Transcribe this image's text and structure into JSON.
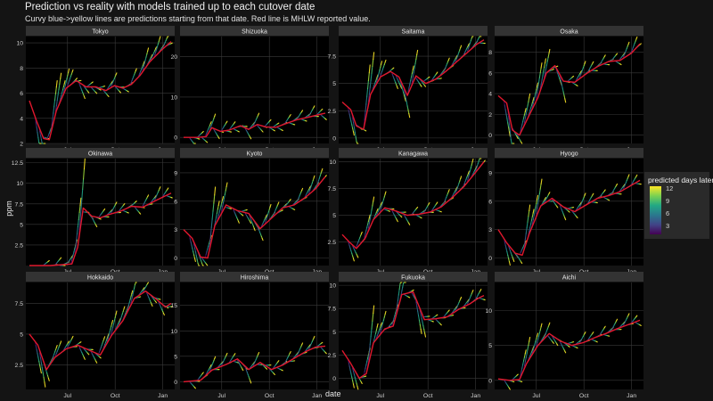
{
  "title": "Prediction vs reality with models trained up to each cutover date",
  "subtitle": "Curvy blue->yellow lines are predictions starting from that date. Red line is MHLW reported value.",
  "chart_data": {
    "type": "line",
    "xlabel": "date",
    "ylabel": "ppm",
    "x_tick_labels": [
      "Jul",
      "Oct",
      "Jan"
    ],
    "grid": true,
    "legend": {
      "title": "predicted days later",
      "placement": "right",
      "colormap": "viridis",
      "ticks": [
        12,
        9,
        6,
        3
      ],
      "range": [
        1,
        12
      ]
    },
    "series_colors": {
      "reported": "#e0182d"
    },
    "panels": [
      {
        "name": "Tokyo",
        "yticks": [
          2,
          4,
          6,
          8,
          10
        ],
        "ylim": [
          2,
          10.5
        ],
        "reported": [
          [
            0,
            5.4
          ],
          [
            0.05,
            3.8
          ],
          [
            0.1,
            2.4
          ],
          [
            0.14,
            2.3
          ],
          [
            0.19,
            4.6
          ],
          [
            0.26,
            6.4
          ],
          [
            0.33,
            7.0
          ],
          [
            0.4,
            6.5
          ],
          [
            0.47,
            6.5
          ],
          [
            0.54,
            6.2
          ],
          [
            0.6,
            6.6
          ],
          [
            0.66,
            6.4
          ],
          [
            0.72,
            6.7
          ],
          [
            0.78,
            7.4
          ],
          [
            0.85,
            8.5
          ],
          [
            0.93,
            9.4
          ],
          [
            1,
            10.1
          ]
        ]
      },
      {
        "name": "Shizuoka",
        "yticks": [
          0,
          10,
          20
        ],
        "ylim": [
          -1.5,
          25
        ],
        "reported": [
          [
            0,
            0
          ],
          [
            0.1,
            0
          ],
          [
            0.16,
            0.2
          ],
          [
            0.2,
            2.4
          ],
          [
            0.26,
            1.5
          ],
          [
            0.32,
            1.8
          ],
          [
            0.4,
            2.9
          ],
          [
            0.46,
            2.0
          ],
          [
            0.52,
            3.2
          ],
          [
            0.58,
            2.6
          ],
          [
            0.65,
            2.5
          ],
          [
            0.72,
            3.4
          ],
          [
            0.8,
            4.4
          ],
          [
            0.88,
            5.0
          ],
          [
            0.95,
            5.6
          ],
          [
            1,
            6.0
          ]
        ]
      },
      {
        "name": "Saitama",
        "yticks": [
          0.0,
          2.5,
          5.0,
          7.5
        ],
        "ylim": [
          -0.5,
          9.3
        ],
        "reported": [
          [
            0,
            3.3
          ],
          [
            0.06,
            2.6
          ],
          [
            0.1,
            1.1
          ],
          [
            0.15,
            0.8
          ],
          [
            0.2,
            4.0
          ],
          [
            0.27,
            5.6
          ],
          [
            0.34,
            6.1
          ],
          [
            0.4,
            5.6
          ],
          [
            0.46,
            3.9
          ],
          [
            0.52,
            5.7
          ],
          [
            0.59,
            5.0
          ],
          [
            0.66,
            5.4
          ],
          [
            0.73,
            6.1
          ],
          [
            0.8,
            6.9
          ],
          [
            0.88,
            7.8
          ],
          [
            0.95,
            8.6
          ],
          [
            1,
            9.0
          ]
        ]
      },
      {
        "name": "Osaka",
        "yticks": [
          0,
          2,
          4,
          6,
          8
        ],
        "ylim": [
          -0.8,
          9.5
        ],
        "reported": [
          [
            0,
            3.8
          ],
          [
            0.06,
            3.1
          ],
          [
            0.1,
            0.5
          ],
          [
            0.15,
            0.0
          ],
          [
            0.2,
            1.4
          ],
          [
            0.28,
            3.6
          ],
          [
            0.34,
            6.0
          ],
          [
            0.4,
            6.7
          ],
          [
            0.46,
            5.2
          ],
          [
            0.54,
            5.1
          ],
          [
            0.62,
            5.9
          ],
          [
            0.7,
            6.6
          ],
          [
            0.78,
            7.1
          ],
          [
            0.86,
            7.2
          ],
          [
            0.94,
            7.9
          ],
          [
            1,
            8.8
          ]
        ]
      },
      {
        "name": "Okinawa",
        "yticks": [
          2.5,
          5.0,
          7.5,
          10.0,
          12.5
        ],
        "ylim": [
          0,
          13
        ],
        "reported": [
          [
            0,
            0
          ],
          [
            0.15,
            0
          ],
          [
            0.3,
            0.2
          ],
          [
            0.34,
            2.2
          ],
          [
            0.38,
            7.0
          ],
          [
            0.44,
            6.0
          ],
          [
            0.5,
            5.8
          ],
          [
            0.56,
            6.2
          ],
          [
            0.64,
            6.6
          ],
          [
            0.72,
            7.2
          ],
          [
            0.8,
            7.1
          ],
          [
            0.88,
            7.8
          ],
          [
            0.95,
            8.4
          ],
          [
            1,
            8.8
          ]
        ]
      },
      {
        "name": "Kyoto",
        "yticks": [
          0,
          3,
          6,
          9
        ],
        "ylim": [
          -0.8,
          10.5
        ],
        "reported": [
          [
            0,
            3.0
          ],
          [
            0.06,
            2.1
          ],
          [
            0.12,
            0.1
          ],
          [
            0.17,
            0.0
          ],
          [
            0.22,
            3.4
          ],
          [
            0.3,
            5.6
          ],
          [
            0.38,
            5.0
          ],
          [
            0.46,
            4.7
          ],
          [
            0.54,
            3.1
          ],
          [
            0.62,
            4.2
          ],
          [
            0.7,
            5.3
          ],
          [
            0.78,
            5.6
          ],
          [
            0.86,
            6.4
          ],
          [
            0.93,
            7.3
          ],
          [
            1,
            8.6
          ]
        ]
      },
      {
        "name": "Kanagawa",
        "yticks": [
          2.5,
          5.0,
          7.5,
          10.0
        ],
        "ylim": [
          0.3,
          10.3
        ],
        "reported": [
          [
            0,
            3.2
          ],
          [
            0.05,
            2.5
          ],
          [
            0.1,
            1.9
          ],
          [
            0.16,
            2.8
          ],
          [
            0.22,
            4.6
          ],
          [
            0.3,
            5.7
          ],
          [
            0.38,
            5.4
          ],
          [
            0.46,
            5.0
          ],
          [
            0.54,
            5.1
          ],
          [
            0.62,
            5.3
          ],
          [
            0.7,
            5.8
          ],
          [
            0.78,
            6.7
          ],
          [
            0.86,
            7.7
          ],
          [
            0.94,
            9.0
          ],
          [
            1,
            10.0
          ]
        ]
      },
      {
        "name": "Hyogo",
        "yticks": [
          0,
          3,
          6,
          9
        ],
        "ylim": [
          -0.8,
          10.5
        ],
        "reported": [
          [
            0,
            3.0
          ],
          [
            0.06,
            1.6
          ],
          [
            0.12,
            0.5
          ],
          [
            0.17,
            0.3
          ],
          [
            0.22,
            2.6
          ],
          [
            0.3,
            5.5
          ],
          [
            0.38,
            6.3
          ],
          [
            0.46,
            5.4
          ],
          [
            0.54,
            4.9
          ],
          [
            0.62,
            5.6
          ],
          [
            0.7,
            6.3
          ],
          [
            0.78,
            6.6
          ],
          [
            0.86,
            7.0
          ],
          [
            0.93,
            7.6
          ],
          [
            1,
            8.2
          ]
        ]
      },
      {
        "name": "Hokkaido",
        "yticks": [
          2.5,
          5.0,
          7.5
        ],
        "ylim": [
          0.5,
          9.2
        ],
        "reported": [
          [
            0,
            5.0
          ],
          [
            0.06,
            4.1
          ],
          [
            0.12,
            2.1
          ],
          [
            0.18,
            3.1
          ],
          [
            0.26,
            3.8
          ],
          [
            0.34,
            4.1
          ],
          [
            0.42,
            3.7
          ],
          [
            0.5,
            3.3
          ],
          [
            0.58,
            4.9
          ],
          [
            0.66,
            6.1
          ],
          [
            0.74,
            7.9
          ],
          [
            0.82,
            8.5
          ],
          [
            0.9,
            7.8
          ],
          [
            0.96,
            7.2
          ],
          [
            1,
            7.5
          ]
        ]
      },
      {
        "name": "Hiroshima",
        "yticks": [
          0,
          5,
          10,
          15
        ],
        "ylim": [
          -1.5,
          19.5
        ],
        "reported": [
          [
            0,
            0
          ],
          [
            0.12,
            0.3
          ],
          [
            0.2,
            2.3
          ],
          [
            0.3,
            3.4
          ],
          [
            0.38,
            4.5
          ],
          [
            0.46,
            2.4
          ],
          [
            0.54,
            3.8
          ],
          [
            0.62,
            2.4
          ],
          [
            0.7,
            3.3
          ],
          [
            0.78,
            4.6
          ],
          [
            0.86,
            5.9
          ],
          [
            0.93,
            6.8
          ],
          [
            1,
            7.0
          ]
        ]
      },
      {
        "name": "Fukuoka",
        "yticks": [
          0.0,
          2.5,
          5.0,
          7.5,
          10.0
        ],
        "ylim": [
          -1.2,
          10.3
        ],
        "reported": [
          [
            0,
            3.0
          ],
          [
            0.06,
            1.6
          ],
          [
            0.12,
            0.0
          ],
          [
            0.17,
            0.5
          ],
          [
            0.22,
            3.8
          ],
          [
            0.3,
            5.3
          ],
          [
            0.36,
            5.6
          ],
          [
            0.42,
            9.0
          ],
          [
            0.5,
            9.3
          ],
          [
            0.58,
            6.3
          ],
          [
            0.66,
            6.4
          ],
          [
            0.74,
            6.6
          ],
          [
            0.82,
            7.4
          ],
          [
            0.9,
            8.0
          ],
          [
            0.96,
            8.6
          ],
          [
            1,
            8.9
          ]
        ]
      },
      {
        "name": "Aichi",
        "yticks": [
          0,
          5,
          10
        ],
        "ylim": [
          -1.3,
          14
        ],
        "reported": [
          [
            0,
            0.2
          ],
          [
            0.08,
            0.0
          ],
          [
            0.15,
            0.1
          ],
          [
            0.2,
            2.4
          ],
          [
            0.28,
            5.0
          ],
          [
            0.36,
            6.7
          ],
          [
            0.44,
            5.6
          ],
          [
            0.52,
            5.0
          ],
          [
            0.6,
            5.4
          ],
          [
            0.68,
            6.1
          ],
          [
            0.76,
            6.7
          ],
          [
            0.84,
            7.4
          ],
          [
            0.92,
            8.0
          ],
          [
            1,
            8.6
          ]
        ]
      }
    ]
  }
}
